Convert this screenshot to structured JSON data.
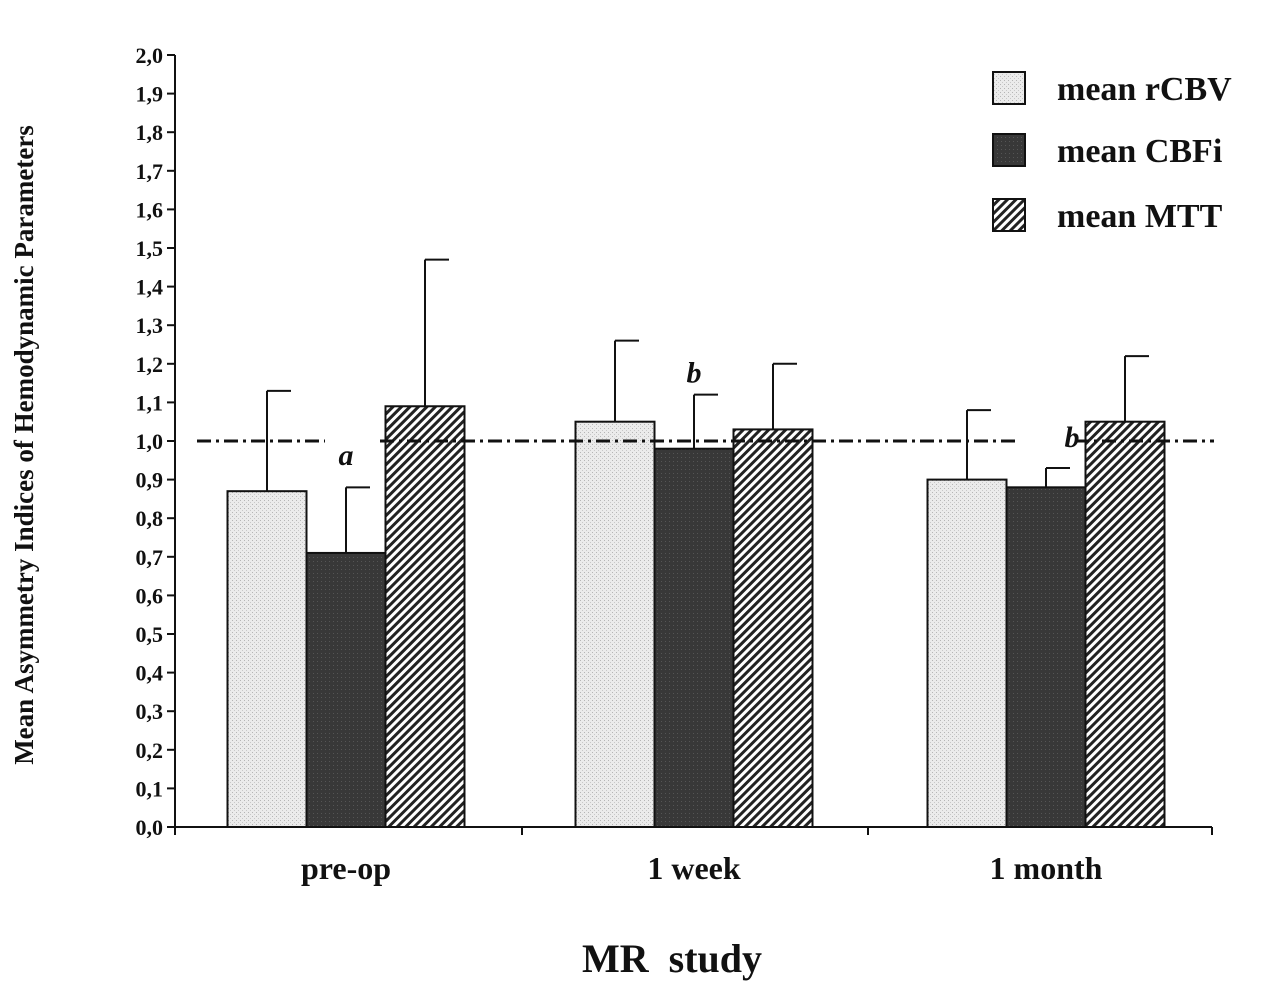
{
  "chart_data": {
    "type": "bar",
    "title": "",
    "xlabel": "MR  study",
    "ylabel": "Mean Asymmetry Indices of Hemodynamic Parameters",
    "ylim": [
      0,
      2.0
    ],
    "yticks": [
      "0,0",
      "0,1",
      "0,2",
      "0,3",
      "0,4",
      "0,5",
      "0,6",
      "0,7",
      "0,8",
      "0,9",
      "1,0",
      "1,1",
      "1,2",
      "1,3",
      "1,4",
      "1,5",
      "1,6",
      "1,7",
      "1,8",
      "1,9",
      "2,0"
    ],
    "categories": [
      "pre-op",
      "1 week",
      "1 month"
    ],
    "series": [
      {
        "name": "mean rCBV",
        "values": [
          0.87,
          1.05,
          0.9
        ],
        "error": [
          0.26,
          0.21,
          0.18
        ],
        "fill": "light-stipple",
        "color": "#e6e6e6"
      },
      {
        "name": "mean CBFi",
        "values": [
          0.71,
          0.98,
          0.88
        ],
        "error": [
          0.17,
          0.14,
          0.05
        ],
        "fill": "dark",
        "color": "#333333"
      },
      {
        "name": "mean MTT",
        "values": [
          1.09,
          1.03,
          1.05
        ],
        "error": [
          0.38,
          0.17,
          0.17
        ],
        "fill": "hatched",
        "color": "#bdbdbd"
      }
    ],
    "reference_line": 1.0,
    "annotations": [
      {
        "text": "a",
        "category": 0,
        "series": 1
      },
      {
        "text": "b",
        "category": 1,
        "series": 1
      },
      {
        "text": "b",
        "category": 2,
        "series": 1
      }
    ],
    "legend_position": "top-right",
    "grid": false
  }
}
